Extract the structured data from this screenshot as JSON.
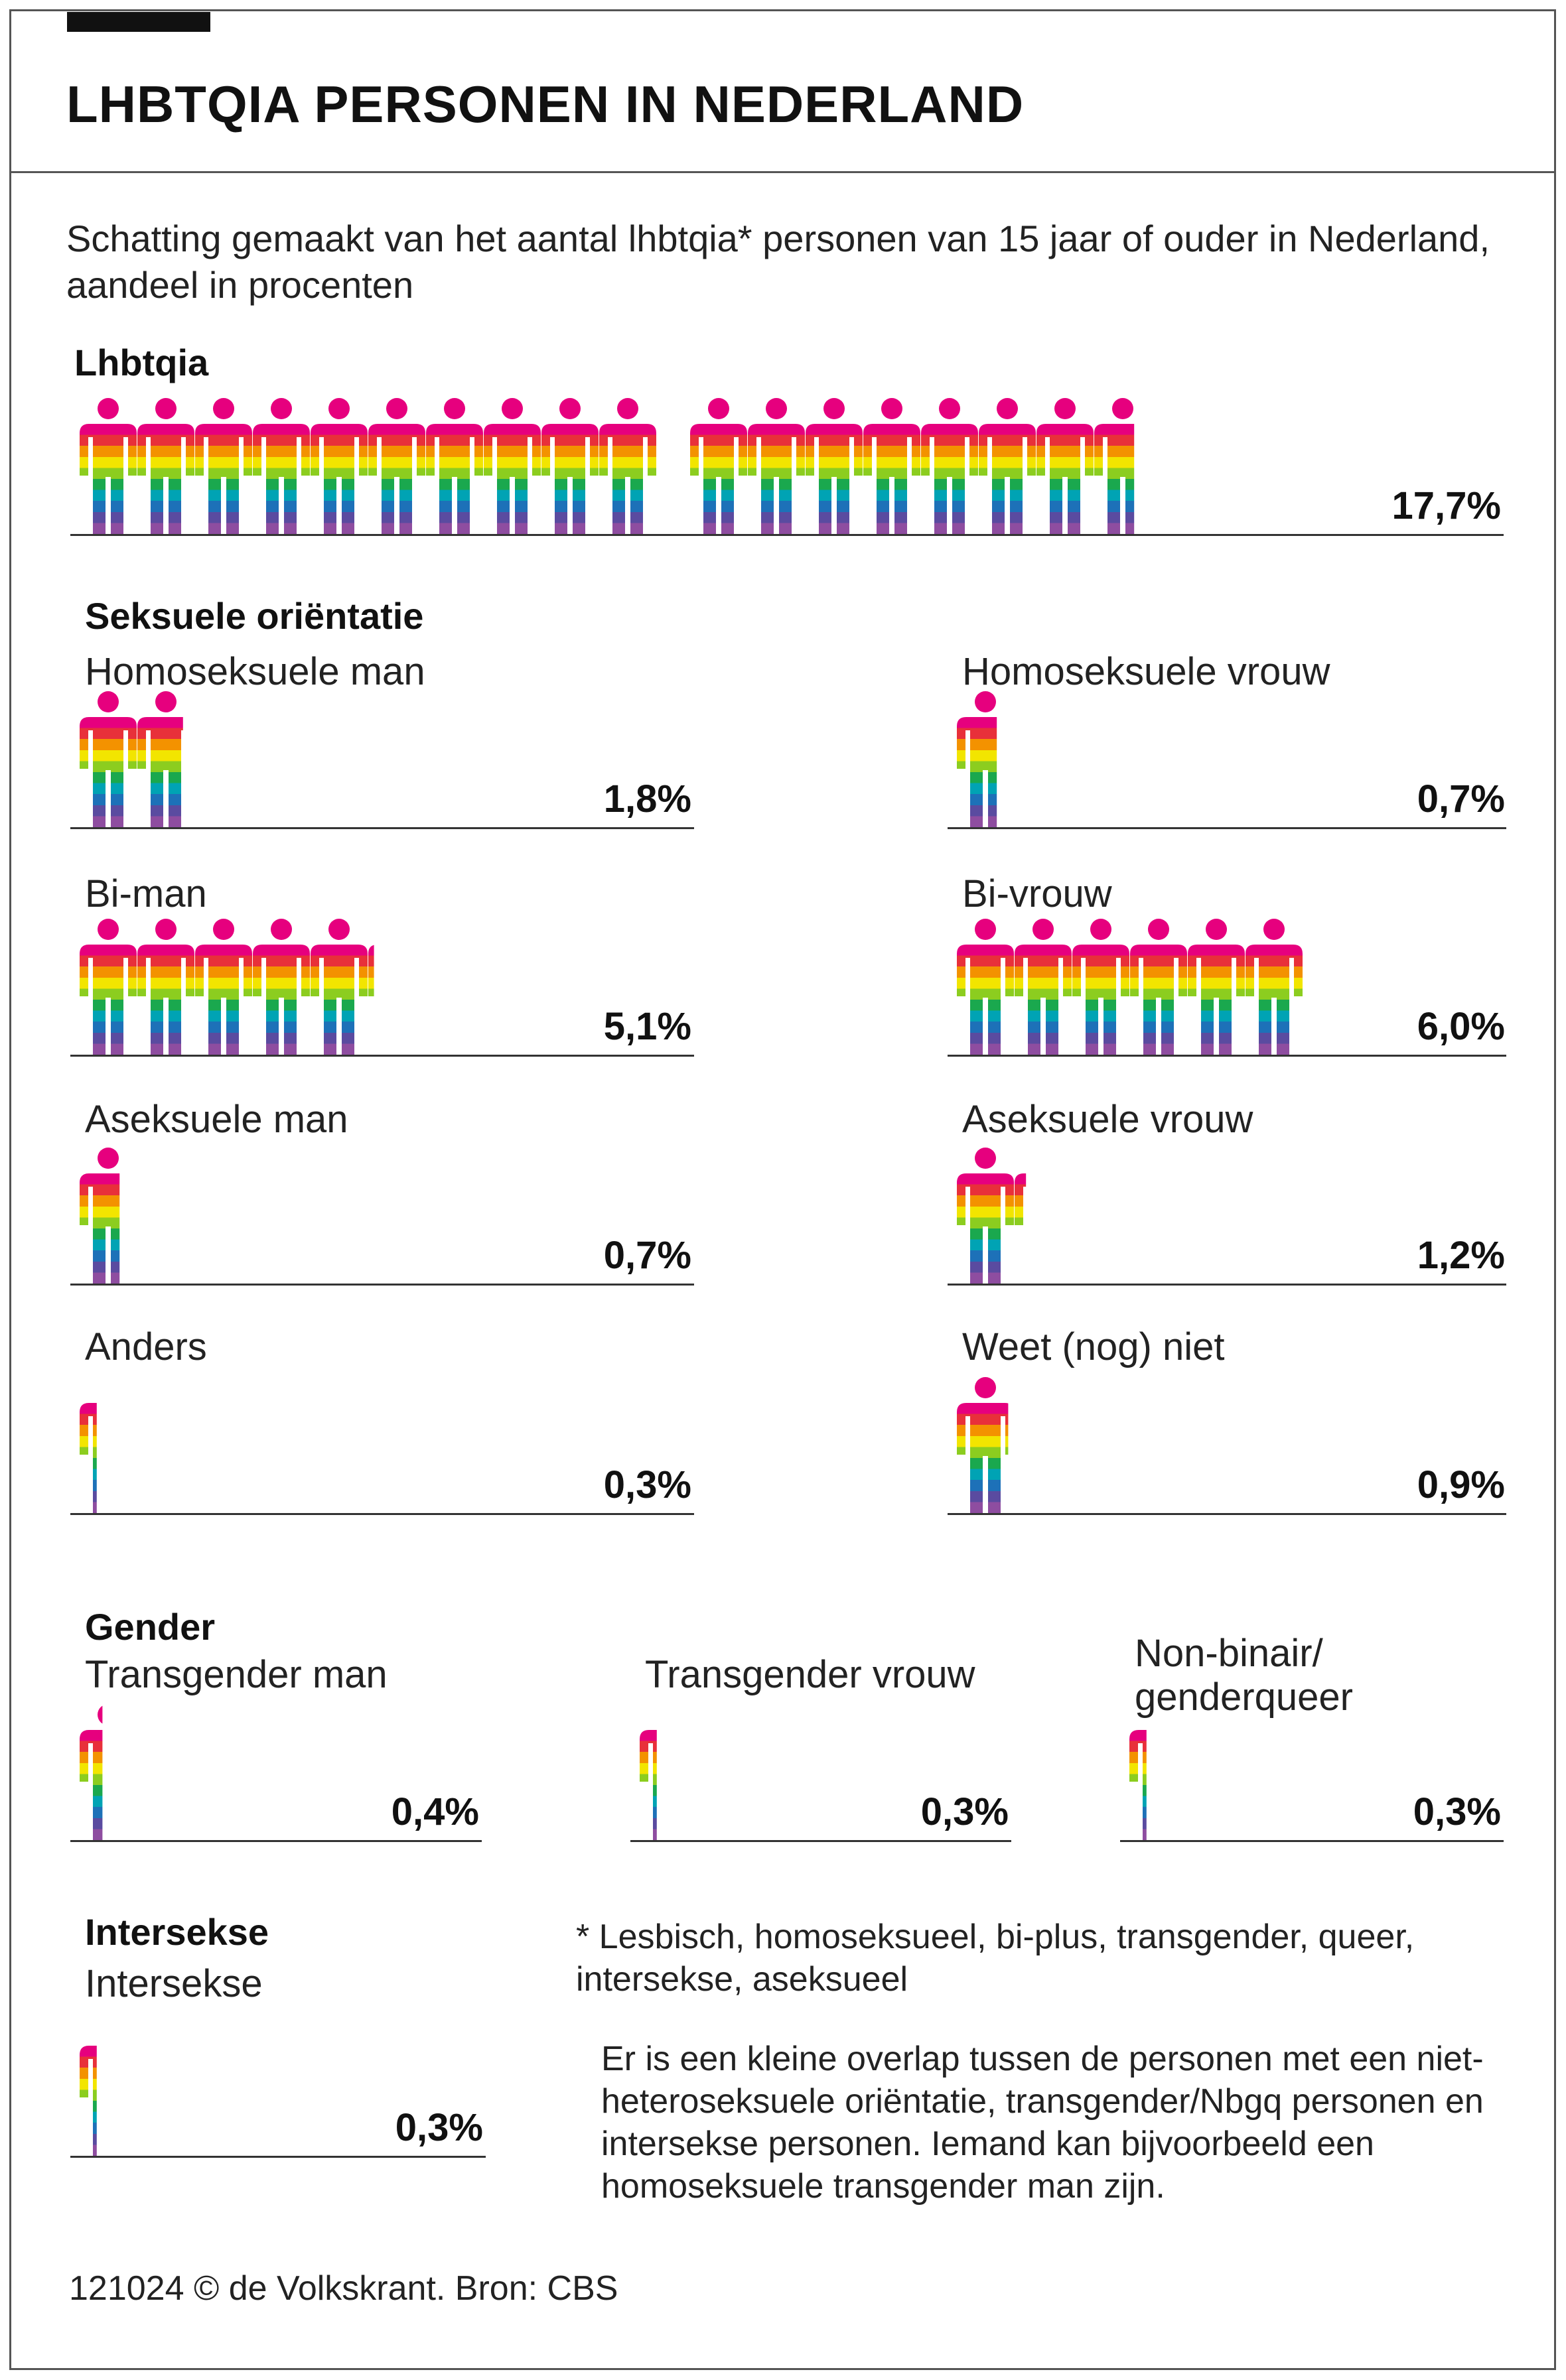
{
  "title": "LHBTQIA PERSONEN IN NEDERLAND",
  "subtitle": "Schatting gemaakt van het aantal lhbtqia* personen van 15 jaar of ouder in Nederland, aandeel in procenten",
  "headings": {
    "lhbtqia": "Lhbtqia",
    "orientation": "Seksuele oriëntatie",
    "gender": "Gender",
    "intersex": "Intersekse"
  },
  "footnote": "* Lesbisch, homoseksueel, bi-plus, transgender, queer, intersekse, aseksueel",
  "overlap_note": "Er is een kleine overlap tussen de personen met een niet-heteroseksuele oriëntatie, transgender/Nbgq personen en intersekse personen. Iemand kan bijvoorbeeld een homoseksuele transgender man zijn.",
  "credit": "121024 © de Volkskrant. Bron: CBS",
  "colors": {
    "head": "#e6007e",
    "stripes": [
      "#e6007e",
      "#e8303a",
      "#f39200",
      "#f2e500",
      "#8ccd1f",
      "#1aa84e",
      "#00a3b4",
      "#1d71b8",
      "#5a4ba0",
      "#8e4da0"
    ]
  },
  "chart_data": {
    "type": "pictogram",
    "unit": "%",
    "icon_value": 1,
    "items": [
      {
        "label": "",
        "value": 17.7,
        "value_label": "17,7%"
      },
      {
        "label": "Homoseksuele man",
        "value": 1.8,
        "value_label": "1,8%"
      },
      {
        "label": "Homoseksuele vrouw",
        "value": 0.7,
        "value_label": "0,7%"
      },
      {
        "label": "Bi-man",
        "value": 5.1,
        "value_label": "5,1%"
      },
      {
        "label": "Bi-vrouw",
        "value": 6.0,
        "value_label": "6,0%"
      },
      {
        "label": "Aseksuele man",
        "value": 0.7,
        "value_label": "0,7%"
      },
      {
        "label": "Aseksuele vrouw",
        "value": 1.2,
        "value_label": "1,2%"
      },
      {
        "label": "Anders",
        "value": 0.3,
        "value_label": "0,3%"
      },
      {
        "label": "Weet (nog) niet",
        "value": 0.9,
        "value_label": "0,9%"
      },
      {
        "label": "Transgender man",
        "value": 0.4,
        "value_label": "0,4%"
      },
      {
        "label": "Transgender vrouw",
        "value": 0.3,
        "value_label": "0,3%"
      },
      {
        "label": "Non-binair/ genderqueer",
        "value": 0.3,
        "value_label": "0,3%"
      },
      {
        "label": "Intersekse",
        "value": 0.3,
        "value_label": "0,3%"
      }
    ]
  }
}
